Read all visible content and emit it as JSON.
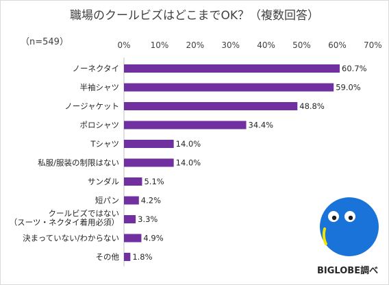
{
  "title": "職場のクールビズはどこまでOK？（複数回答）",
  "subtitle": "（n=549）",
  "brand_text": "BIGLOBE調べ",
  "colors": {
    "bar": "#7030a0",
    "mascot": "#1a73d9",
    "mascot_cheek": "#f2e600"
  },
  "chart_data": {
    "type": "bar",
    "orientation": "horizontal",
    "title": "職場のクールビズはどこまでOK？（複数回答）",
    "categories": [
      [
        "ノーネクタイ"
      ],
      [
        "半袖シャツ"
      ],
      [
        "ノージャケット"
      ],
      [
        "ポロシャツ"
      ],
      [
        "Tシャツ"
      ],
      [
        "私服/服装の制限はない"
      ],
      [
        "サンダル"
      ],
      [
        "短パン"
      ],
      [
        "クールビズではない",
        "（スーツ・ネクタイ着用必須）"
      ],
      [
        "決まっていない/わからない"
      ],
      [
        "その他"
      ]
    ],
    "values": [
      60.7,
      59.0,
      48.8,
      34.4,
      14.0,
      14.0,
      5.1,
      4.2,
      3.3,
      4.9,
      1.8
    ],
    "value_labels": [
      "60.7%",
      "59.0%",
      "48.8%",
      "34.4%",
      "14.0%",
      "14.0%",
      "5.1%",
      "4.2%",
      "3.3%",
      "4.9%",
      "1.8%"
    ],
    "xlim": [
      0,
      70
    ],
    "x_ticks": [
      "0%",
      "10%",
      "20%",
      "30%",
      "40%",
      "50%",
      "60%",
      "70%"
    ],
    "grid": false,
    "legend": "none"
  }
}
